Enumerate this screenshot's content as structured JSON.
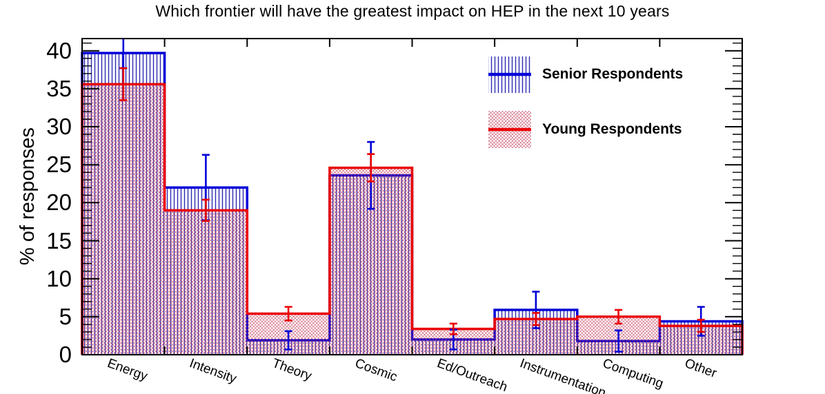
{
  "title": "Which frontier will have the greatest impact on HEP in the next 10 years",
  "chart_data": {
    "type": "bar",
    "subtype": "overlaid-step-histograms-with-error-bars",
    "title": "Which frontier will have the greatest impact on HEP in the next 10 years",
    "ylabel": "% of responses",
    "xlabel": "",
    "ylim": [
      0,
      41.6
    ],
    "yticks_major": [
      0,
      5,
      10,
      15,
      20,
      25,
      30,
      35,
      40
    ],
    "minor_tick_interval": 1,
    "grid": false,
    "legend_position": "top-right-inside",
    "x_tick_label_rotation_deg": 20,
    "categories": [
      "Energy",
      "Intensity",
      "Theory",
      "Cosmic",
      "Ed/Outreach",
      "Instrumentation",
      "Computing",
      "Other"
    ],
    "series": [
      {
        "name": "Senior Respondents",
        "color": "#0000d8",
        "fill_pattern": "vertical-hatch",
        "values": [
          39.7,
          22.0,
          1.9,
          23.6,
          2.0,
          5.9,
          1.8,
          4.4
        ],
        "errors": [
          2.0,
          4.3,
          1.2,
          4.4,
          1.3,
          2.4,
          1.4,
          1.9
        ]
      },
      {
        "name": "Young Respondents",
        "color": "#ea0000",
        "fill_pattern": "diagonal-dot-mesh",
        "values": [
          35.6,
          19.0,
          5.4,
          24.6,
          3.4,
          4.7,
          5.0,
          3.8
        ],
        "errors": [
          2.1,
          1.4,
          0.9,
          1.8,
          0.7,
          0.8,
          0.9,
          0.8
        ]
      }
    ]
  }
}
